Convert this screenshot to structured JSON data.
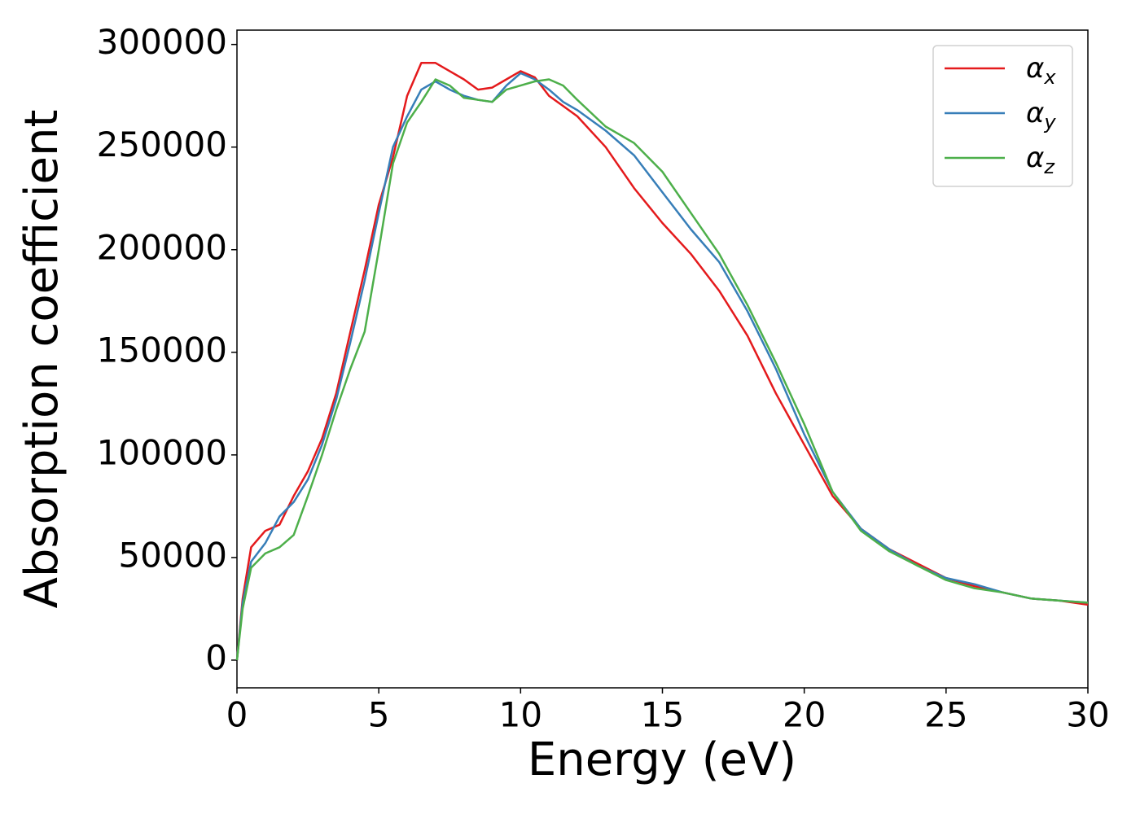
{
  "chart_data": {
    "type": "line",
    "xlabel": "Energy (eV)",
    "ylabel": "Absorption coefficient",
    "x": [
      0,
      0.2,
      0.5,
      1,
      1.5,
      2,
      2.5,
      3,
      3.5,
      4,
      4.5,
      5,
      5.5,
      6,
      6.5,
      7,
      7.5,
      8,
      8.5,
      9,
      9.5,
      10,
      10.5,
      11,
      11.5,
      12,
      13,
      14,
      15,
      16,
      17,
      18,
      19,
      20,
      21,
      22,
      23,
      24,
      25,
      26,
      27,
      28,
      29,
      30
    ],
    "series": [
      {
        "name": "αx",
        "color": "#e41a1c",
        "values": [
          0,
          30000,
          55000,
          63000,
          66000,
          80000,
          92000,
          108000,
          130000,
          160000,
          190000,
          222000,
          245000,
          275000,
          291000,
          291000,
          287000,
          283000,
          278000,
          279000,
          283000,
          287000,
          284000,
          275000,
          270000,
          265000,
          250000,
          230000,
          213000,
          198000,
          180000,
          158000,
          130000,
          105000,
          80000,
          64000,
          54000,
          47000,
          40000,
          36000,
          33000,
          30000,
          29000,
          27000
        ]
      },
      {
        "name": "αy",
        "color": "#377eb8",
        "values": [
          0,
          28000,
          48000,
          57000,
          70000,
          77000,
          88000,
          105000,
          127000,
          155000,
          185000,
          218000,
          250000,
          265000,
          278000,
          282000,
          278000,
          275000,
          273000,
          272000,
          280000,
          286000,
          283000,
          278000,
          272000,
          268000,
          258000,
          246000,
          228000,
          210000,
          194000,
          170000,
          142000,
          110000,
          82000,
          64000,
          54000,
          46000,
          40000,
          37000,
          33000,
          30000,
          29000,
          28000
        ]
      },
      {
        "name": "αz",
        "color": "#4daf4a",
        "values": [
          0,
          25000,
          45000,
          52000,
          55000,
          61000,
          80000,
          100000,
          122000,
          142000,
          160000,
          200000,
          242000,
          262000,
          272000,
          283000,
          280000,
          274000,
          273000,
          272000,
          278000,
          280000,
          282000,
          283000,
          280000,
          273000,
          260000,
          252000,
          238000,
          218000,
          198000,
          173000,
          145000,
          115000,
          82000,
          63000,
          53000,
          46000,
          39000,
          35000,
          33000,
          30000,
          29000,
          28000
        ]
      }
    ],
    "xlim": [
      0,
      30
    ],
    "xticks": [
      0,
      5,
      10,
      15,
      20,
      25,
      30
    ],
    "ylim": [
      -13500,
      307000
    ],
    "yticks": [
      0,
      50000,
      100000,
      150000,
      200000,
      250000,
      300000
    ],
    "legend": "upper right",
    "grid": false
  }
}
